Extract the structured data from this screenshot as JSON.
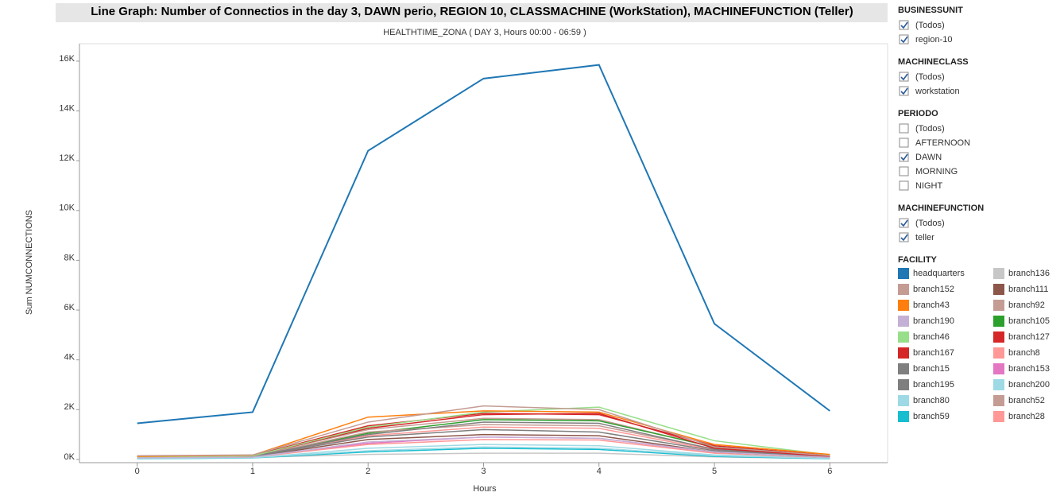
{
  "chart_data": {
    "type": "line",
    "title": "Line Graph: Number of Connectios in the  day 3, DAWN perio, REGION 10, CLASSMACHINE (WorkStation), MACHINEFUNCTION (Teller)",
    "subtitle": "HEALTHTIME_ZONA ( DAY 3, Hours 00:00 - 06:59 )",
    "xlabel": "Hours",
    "ylabel": "Sum  NUMCONNECTIONS",
    "x": [
      0,
      1,
      2,
      3,
      4,
      5,
      6
    ],
    "xlim": [
      -0.5,
      6.5
    ],
    "xticks": [
      0,
      1,
      2,
      3,
      4,
      5,
      6
    ],
    "ylim": [
      -130,
      16700
    ],
    "yticks": [
      {
        "value": 0,
        "label": "0K"
      },
      {
        "value": 2000,
        "label": "2K"
      },
      {
        "value": 4000,
        "label": "4K"
      },
      {
        "value": 6000,
        "label": "6K"
      },
      {
        "value": 8000,
        "label": "8K"
      },
      {
        "value": 10000,
        "label": "10K"
      },
      {
        "value": 12000,
        "label": "12K"
      },
      {
        "value": 14000,
        "label": "14K"
      },
      {
        "value": 16000,
        "label": "16K"
      }
    ],
    "legend_title": "FACILITY",
    "series": [
      {
        "name": "headquarters",
        "color": "#1f77b4",
        "values": [
          1450,
          1900,
          12400,
          15300,
          15850,
          5450,
          1950
        ]
      },
      {
        "name": "branch152",
        "color": "#c49c94",
        "values": [
          150,
          180,
          1500,
          2150,
          2000,
          500,
          150
        ]
      },
      {
        "name": "branch43",
        "color": "#ff7f0e",
        "values": [
          120,
          170,
          1700,
          1950,
          1900,
          600,
          200
        ]
      },
      {
        "name": "branch190",
        "color": "#c5b0d5",
        "values": [
          60,
          90,
          700,
          900,
          850,
          300,
          80
        ]
      },
      {
        "name": "branch46",
        "color": "#98df8a",
        "values": [
          100,
          140,
          1300,
          1900,
          2100,
          750,
          180
        ]
      },
      {
        "name": "branch167",
        "color": "#d62728",
        "values": [
          110,
          150,
          1250,
          1800,
          1850,
          450,
          120
        ]
      },
      {
        "name": "branch15",
        "color": "#7f7f7f",
        "values": [
          90,
          120,
          1000,
          1500,
          1450,
          400,
          100
        ]
      },
      {
        "name": "branch195",
        "color": "#7f7f7f",
        "values": [
          80,
          110,
          900,
          1200,
          1100,
          350,
          90
        ]
      },
      {
        "name": "branch80",
        "color": "#9edae5",
        "values": [
          40,
          70,
          350,
          500,
          450,
          150,
          40
        ]
      },
      {
        "name": "branch59",
        "color": "#17becf",
        "values": [
          30,
          60,
          300,
          450,
          400,
          120,
          30
        ]
      },
      {
        "name": "branch136",
        "color": "#c7c7c7",
        "values": [
          50,
          80,
          200,
          250,
          250,
          100,
          30
        ]
      },
      {
        "name": "branch111",
        "color": "#8c564b",
        "values": [
          70,
          100,
          800,
          1000,
          950,
          300,
          80
        ]
      },
      {
        "name": "branch92",
        "color": "#c49c94",
        "values": [
          90,
          120,
          1100,
          1400,
          1350,
          420,
          110
        ]
      },
      {
        "name": "branch105",
        "color": "#2ca02c",
        "values": [
          100,
          130,
          1050,
          1600,
          1550,
          500,
          140
        ]
      },
      {
        "name": "branch127",
        "color": "#d62728",
        "values": [
          130,
          160,
          1350,
          1850,
          1800,
          550,
          160
        ]
      },
      {
        "name": "branch8",
        "color": "#ff9896",
        "values": [
          60,
          90,
          600,
          800,
          780,
          250,
          70
        ]
      },
      {
        "name": "branch153",
        "color": "#e377c2",
        "values": [
          70,
          100,
          650,
          900,
          850,
          280,
          90
        ]
      },
      {
        "name": "branch200",
        "color": "#9edae5",
        "values": [
          40,
          60,
          450,
          600,
          550,
          180,
          50
        ]
      },
      {
        "name": "branch52",
        "color": "#c49c94",
        "values": [
          100,
          140,
          1200,
          1650,
          1600,
          480,
          130
        ]
      },
      {
        "name": "branch28",
        "color": "#ff9896",
        "values": [
          80,
          110,
          950,
          1300,
          1250,
          380,
          100
        ]
      }
    ]
  },
  "filters": [
    {
      "title": "BUSINESSUNIT",
      "options": [
        {
          "label": "(Todos)",
          "checked": true
        },
        {
          "label": "region-10",
          "checked": true
        }
      ]
    },
    {
      "title": "MACHINECLASS",
      "options": [
        {
          "label": "(Todos)",
          "checked": true
        },
        {
          "label": "workstation",
          "checked": true
        }
      ]
    },
    {
      "title": "PERIODO",
      "options": [
        {
          "label": "(Todos)",
          "checked": false
        },
        {
          "label": "AFTERNOON",
          "checked": false
        },
        {
          "label": "DAWN",
          "checked": true
        },
        {
          "label": "MORNING",
          "checked": false
        },
        {
          "label": "NIGHT",
          "checked": false
        }
      ]
    },
    {
      "title": "MACHINEFUNCTION",
      "options": [
        {
          "label": "(Todos)",
          "checked": true
        },
        {
          "label": "teller",
          "checked": true
        }
      ]
    }
  ]
}
